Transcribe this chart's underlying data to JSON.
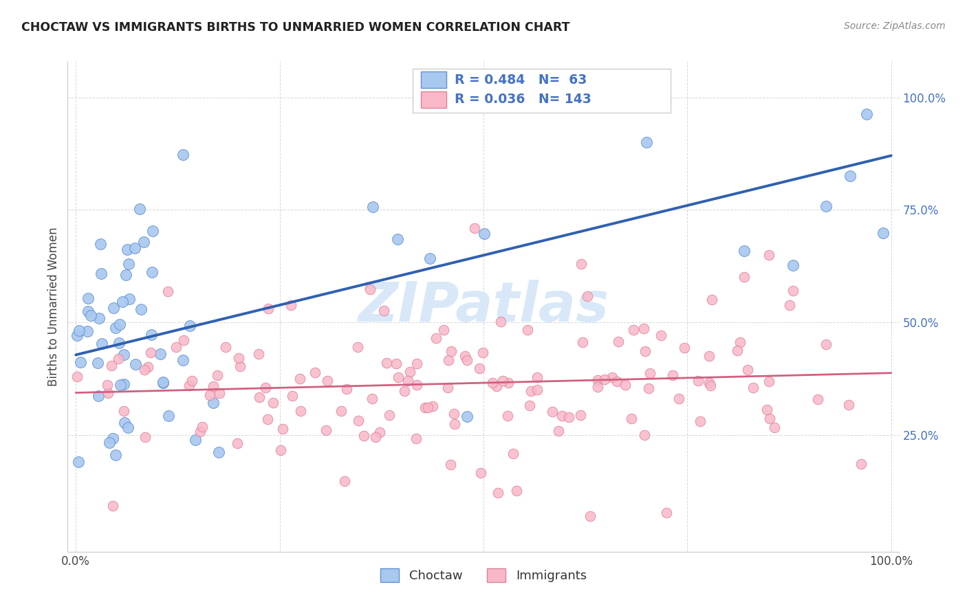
{
  "title": "CHOCTAW VS IMMIGRANTS BIRTHS TO UNMARRIED WOMEN CORRELATION CHART",
  "source": "Source: ZipAtlas.com",
  "ylabel": "Births to Unmarried Women",
  "legend_labels": [
    "Choctaw",
    "Immigrants"
  ],
  "choctaw_R": 0.484,
  "choctaw_N": 63,
  "immigrants_R": 0.036,
  "immigrants_N": 143,
  "choctaw_color": "#A8C8F0",
  "choctaw_edge_color": "#6090D0",
  "choctaw_line_color": "#3060B0",
  "immigrants_color": "#F8B8C8",
  "immigrants_edge_color": "#E08098",
  "immigrants_line_color": "#D06080",
  "watermark_color": "#D8E8F8",
  "background_color": "#ffffff",
  "ytick_color": "#4472C4",
  "legend_box_color": "#cccccc"
}
